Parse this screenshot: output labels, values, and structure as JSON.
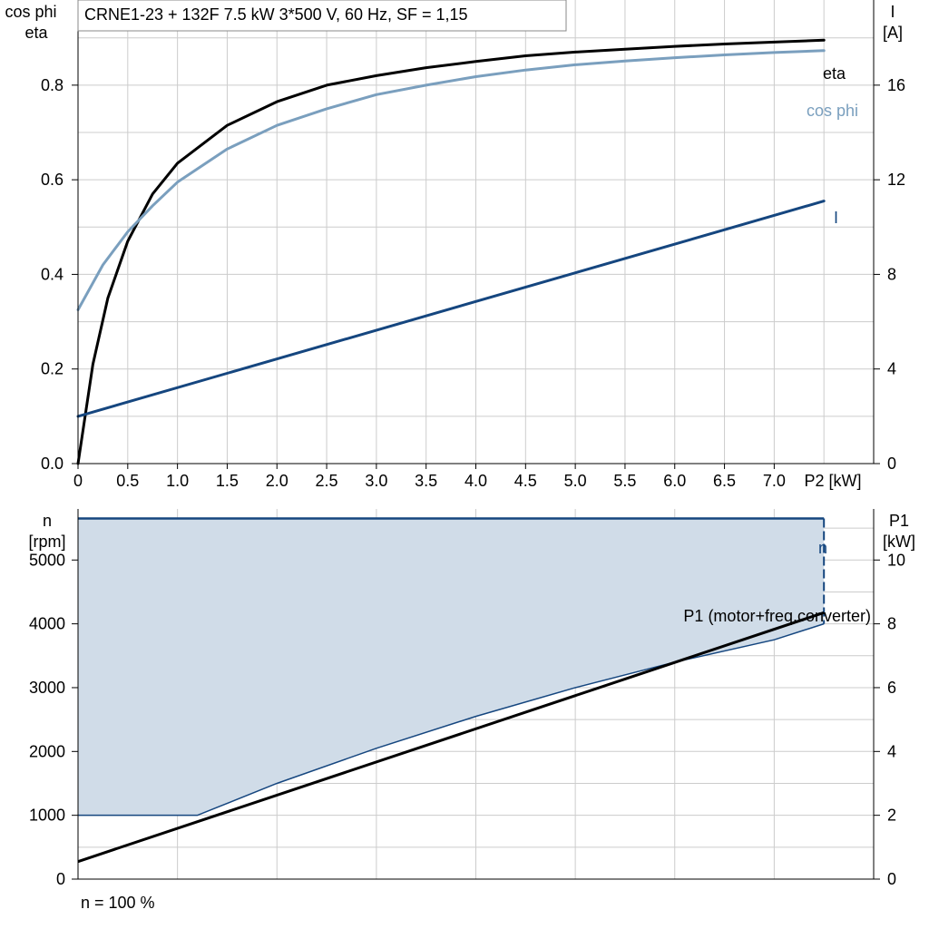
{
  "title": "CRNE1-23 + 132F   7.5 kW   3*500 V, 60 Hz, SF = 1,15",
  "footer_note": "n = 100 %",
  "colors": {
    "eta": "#000000",
    "cos_phi": "#7a9fbe",
    "current": "#15467f",
    "speed": "#15467f",
    "p1": "#000000",
    "fill": "#d0dce8",
    "grid": "#cccccc"
  },
  "chart_data": [
    {
      "type": "line",
      "left_axis_label": [
        "cos phi",
        "eta"
      ],
      "right_axis_label": [
        "I",
        "[A]"
      ],
      "x_axis_label": "P2 [kW]",
      "x_ticks": [
        "0",
        "0.5",
        "1.0",
        "1.5",
        "2.0",
        "2.5",
        "3.0",
        "3.5",
        "4.0",
        "4.5",
        "5.0",
        "5.5",
        "6.0",
        "6.5",
        "7.0"
      ],
      "left_ticks": [
        "0.0",
        "0.2",
        "0.4",
        "0.6",
        "0.8"
      ],
      "right_ticks": [
        "0",
        "4",
        "8",
        "12",
        "16"
      ],
      "xlim": [
        0,
        8.0
      ],
      "left_ylim": [
        0,
        0.98
      ],
      "right_ylim": [
        0,
        19.6
      ],
      "grid": true,
      "series": [
        {
          "name": "eta",
          "axis": "left",
          "x": [
            0,
            0.15,
            0.3,
            0.5,
            0.75,
            1.0,
            1.5,
            2.0,
            2.5,
            3.0,
            3.5,
            4.0,
            4.5,
            5.0,
            5.5,
            6.0,
            6.5,
            7.0,
            7.5
          ],
          "y": [
            0.0,
            0.21,
            0.35,
            0.47,
            0.57,
            0.635,
            0.715,
            0.765,
            0.8,
            0.82,
            0.837,
            0.85,
            0.862,
            0.87,
            0.876,
            0.882,
            0.887,
            0.891,
            0.895
          ]
        },
        {
          "name": "cos phi",
          "axis": "left",
          "x": [
            0,
            0.25,
            0.5,
            0.75,
            1.0,
            1.5,
            2.0,
            2.5,
            3.0,
            3.5,
            4.0,
            4.5,
            5.0,
            5.5,
            6.0,
            6.5,
            7.0,
            7.5
          ],
          "y": [
            0.325,
            0.42,
            0.49,
            0.545,
            0.595,
            0.665,
            0.715,
            0.75,
            0.78,
            0.8,
            0.818,
            0.832,
            0.843,
            0.851,
            0.858,
            0.864,
            0.869,
            0.873
          ]
        },
        {
          "name": "I",
          "axis": "right",
          "x": [
            0,
            7.5
          ],
          "y": [
            2.0,
            11.1
          ]
        }
      ]
    },
    {
      "type": "area",
      "left_axis_label": [
        "n",
        "[rpm]"
      ],
      "right_axis_label": [
        "P1",
        "[kW]"
      ],
      "x_axis_label": "",
      "left_ticks": [
        "0",
        "1000",
        "2000",
        "3000",
        "4000",
        "5000"
      ],
      "right_ticks": [
        "0",
        "2",
        "4",
        "6",
        "8",
        "10"
      ],
      "xlim": [
        0,
        8.0
      ],
      "left_ylim": [
        0,
        5800
      ],
      "right_ylim": [
        0,
        11.6
      ],
      "grid": true,
      "series": [
        {
          "name": "n",
          "axis": "left",
          "x": [
            0,
            7.5,
            7.5
          ],
          "y": [
            5650,
            5650,
            4000
          ]
        },
        {
          "name": "min speed boundary",
          "axis": "left",
          "x": [
            0,
            1.2,
            2.0,
            3.0,
            4.0,
            5.0,
            6.0,
            7.0,
            7.5
          ],
          "y": [
            1000,
            1000,
            1500,
            2050,
            2550,
            3000,
            3400,
            3750,
            4000
          ]
        },
        {
          "name": "P1 (motor+freq.converter)",
          "axis": "right",
          "x": [
            0,
            7.5
          ],
          "y": [
            0.55,
            8.35
          ]
        }
      ]
    }
  ]
}
